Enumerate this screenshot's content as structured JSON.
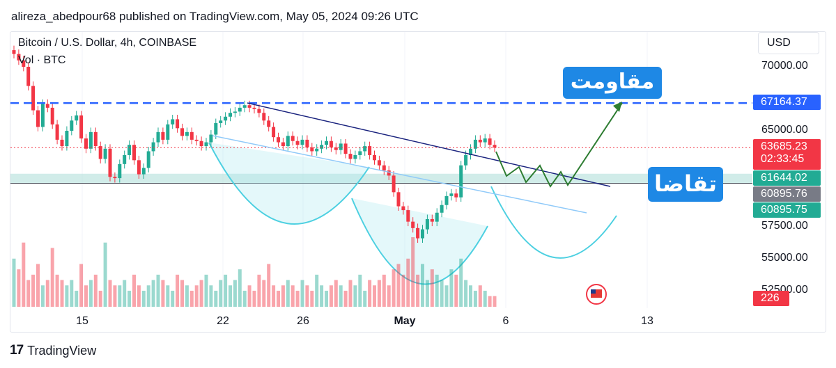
{
  "header": {
    "published": "alireza_abedpour68 published on TradingView.com, May 05, 2024 09:26 UTC"
  },
  "legend": {
    "symbol": "Bitcoin / U.S. Dollar, 4h, COINBASE",
    "volume": "Vol · BTC"
  },
  "currency_button": "USD",
  "annotations": {
    "resistance": "مقاومت",
    "demand": "تقاضا"
  },
  "price_tags": [
    {
      "label": "67164.37",
      "color": "#2962ff"
    },
    {
      "label": "63685.23",
      "color": "#f23645"
    },
    {
      "label": "02:33:45",
      "color": "#f23645"
    },
    {
      "label": "61644.02",
      "color": "#22ab94"
    },
    {
      "label": "60895.76",
      "color": "#787b86"
    },
    {
      "label": "60895.75",
      "color": "#22ab94"
    },
    {
      "label": "226",
      "color": "#f23645"
    }
  ],
  "footer": {
    "logo": "17",
    "brand": "TradingView"
  },
  "colors": {
    "up": "#22ab94",
    "down": "#f23645",
    "resistance_line": "#2962ff",
    "trendline": "#1a237e",
    "projection": "#2e7d32",
    "cup": "#4dd0e1"
  },
  "chart_data": {
    "type": "candlestick",
    "title": "Bitcoin / U.S. Dollar, 4h, COINBASE",
    "y_axis": {
      "ticks": [
        "70000.00",
        "65000.00",
        "57500.00",
        "55000.00",
        "52500.00"
      ],
      "tick_values": [
        70000,
        65000,
        57500,
        55000,
        52500
      ]
    },
    "x_axis": {
      "ticks": [
        "15",
        "22",
        "26",
        "May",
        "6",
        "13"
      ]
    },
    "horizontal_levels": {
      "resistance": 67164.37,
      "last_price": 63685.23,
      "demand_zone": [
        60895.75,
        61644.02
      ],
      "support_line": 60895.76
    },
    "last_price": 63685.23,
    "countdown": "02:33:45",
    "last_volume": 226,
    "closes": [
      71000,
      70500,
      70000,
      68500,
      66600,
      65300,
      67100,
      66800,
      65500,
      64300,
      63800,
      65000,
      65800,
      66200,
      64400,
      63600,
      64900,
      63800,
      62800,
      63600,
      61400,
      61300,
      62400,
      63100,
      63900,
      62700,
      61600,
      62100,
      63400,
      64100,
      64900,
      64300,
      65500,
      65900,
      65200,
      64600,
      64900,
      64300,
      64200,
      63800,
      64100,
      64700,
      65600,
      65800,
      66100,
      66400,
      66500,
      66800,
      67000,
      66800,
      66700,
      66400,
      65800,
      65300,
      64500,
      64100,
      63800,
      64600,
      64200,
      63900,
      64300,
      63700,
      63400,
      63600,
      63900,
      64200,
      63700,
      63500,
      64000,
      63200,
      62800,
      63100,
      63400,
      63800,
      63100,
      62700,
      62300,
      61900,
      61500,
      60200,
      59100,
      58800,
      57900,
      57400,
      56600,
      57300,
      58100,
      57900,
      58600,
      59200,
      59900,
      60100,
      59800,
      62300,
      63100,
      63600,
      64300,
      64100,
      64400,
      63900,
      63685
    ],
    "volumes": [
      9,
      7,
      12,
      5,
      6,
      8,
      4,
      5,
      11,
      6,
      5,
      4,
      5,
      3,
      8,
      4,
      5,
      6,
      3,
      12,
      5,
      4,
      4,
      5,
      3,
      6,
      4,
      3,
      4,
      5,
      6,
      5,
      4,
      3,
      6,
      5,
      4,
      3,
      4,
      5,
      6,
      4,
      3,
      5,
      6,
      4,
      5,
      7,
      3,
      4,
      3,
      6,
      5,
      8,
      4,
      3,
      4,
      5,
      4,
      3,
      5,
      4,
      3,
      6,
      4,
      3,
      4,
      5,
      4,
      3,
      5,
      4,
      6,
      3,
      5,
      4,
      5,
      6,
      4,
      7,
      8,
      6,
      9,
      13,
      6,
      8,
      5,
      7,
      6,
      5,
      4,
      7,
      6,
      9,
      5,
      4,
      3,
      4,
      3,
      2,
      2
    ]
  }
}
